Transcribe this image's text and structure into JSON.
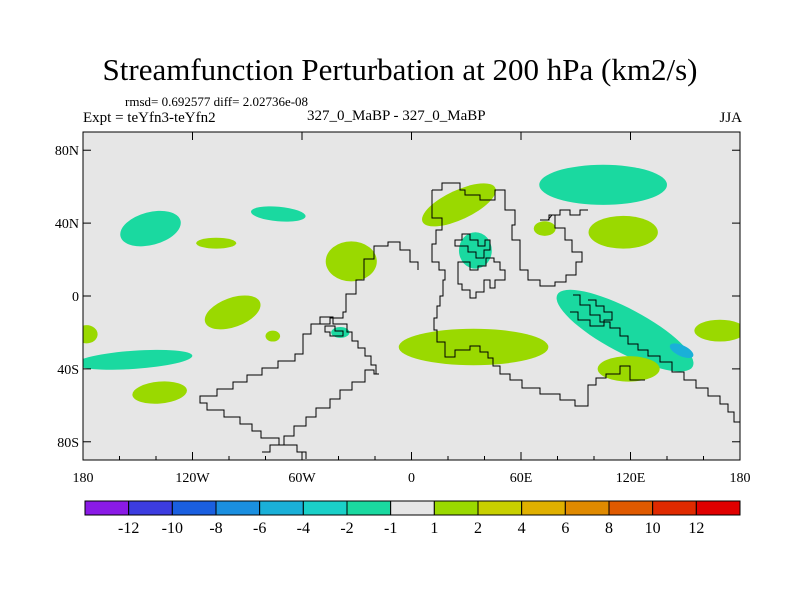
{
  "chart_data": {
    "type": "heatmap",
    "title": "Streamfunction Perturbation at 200 hPa (km2/s)",
    "subtitle_stats": "rmsd= 0.692577 diff= 2.02736e-08",
    "experiment_label": "Expt = teYfn3-teYfn2",
    "case_label": "327_0_MaBP - 327_0_MaBP",
    "season": "JJA",
    "map": "global lat-lon with coastlines",
    "x_ticks": [
      "180",
      "120W",
      "60W",
      "0",
      "60E",
      "120E",
      "180"
    ],
    "y_ticks": [
      "80N",
      "40N",
      "0",
      "40S",
      "80S"
    ],
    "xlim": [
      -180,
      180
    ],
    "ylim": [
      -90,
      90
    ],
    "colorbar": {
      "labels": [
        "-12",
        "-10",
        "-8",
        "-6",
        "-4",
        "-2",
        "-1",
        "1",
        "2",
        "4",
        "6",
        "8",
        "10",
        "12"
      ],
      "colors": [
        "#8a1ae6",
        "#3c3ce0",
        "#1a5fe0",
        "#1a8fe0",
        "#1ab0d8",
        "#1ad0c8",
        "#1ad9a0",
        "#e6e6e6",
        "#9ad900",
        "#c8d000",
        "#e0b000",
        "#e08a00",
        "#e05a00",
        "#e02a00",
        "#e00000"
      ]
    },
    "features": [
      {
        "lon": -143,
        "lat": 37,
        "rlon": 17,
        "rlat": 9,
        "rot": -15,
        "level": "-2"
      },
      {
        "lon": -73,
        "lat": 45,
        "rlon": 15,
        "rlat": 4,
        "rot": 5,
        "level": "-2"
      },
      {
        "lon": -107,
        "lat": 29,
        "rlon": 11,
        "rlat": 3,
        "rot": 0,
        "level": "1"
      },
      {
        "lon": -33,
        "lat": 19,
        "rlon": 14,
        "rlat": 11,
        "rot": 0,
        "level": "1"
      },
      {
        "lon": -98,
        "lat": -9,
        "rlon": 16,
        "rlat": 8,
        "rot": -20,
        "level": "1"
      },
      {
        "lon": -178,
        "lat": -21,
        "rlon": 6,
        "rlat": 5,
        "rot": 0,
        "level": "1"
      },
      {
        "lon": -152,
        "lat": -35,
        "rlon": 32,
        "rlat": 5,
        "rot": -4,
        "level": "-2"
      },
      {
        "lon": -76,
        "lat": -22,
        "rlon": 4,
        "rlat": 3,
        "rot": 0,
        "level": "1"
      },
      {
        "lon": -39,
        "lat": -20,
        "rlon": 5,
        "rlat": 3,
        "rot": 0,
        "level": "-2"
      },
      {
        "lon": -138,
        "lat": -53,
        "rlon": 15,
        "rlat": 6,
        "rot": -5,
        "level": "1"
      },
      {
        "lon": 34,
        "lat": -28,
        "rlon": 41,
        "rlat": 10,
        "rot": 0,
        "level": "1"
      },
      {
        "lon": 26,
        "lat": 50,
        "rlon": 22,
        "rlat": 8,
        "rot": -25,
        "level": "1"
      },
      {
        "lon": 35,
        "lat": 25,
        "rlon": 9,
        "rlat": 10,
        "rot": 0,
        "level": "-2"
      },
      {
        "lon": 73,
        "lat": 37,
        "rlon": 6,
        "rlat": 4,
        "rot": 0,
        "level": "1"
      },
      {
        "lon": 105,
        "lat": 61,
        "rlon": 35,
        "rlat": 11,
        "rot": 0,
        "level": "-2"
      },
      {
        "lon": 116,
        "lat": 35,
        "rlon": 19,
        "rlat": 9,
        "rot": 0,
        "level": "1"
      },
      {
        "lon": 117,
        "lat": -19,
        "rlon": 42,
        "rlat": 12,
        "rot": 28,
        "level": "-2"
      },
      {
        "lon": 148,
        "lat": -30,
        "rlon": 7,
        "rlat": 3,
        "rot": 25,
        "level": "-4"
      },
      {
        "lon": 119,
        "lat": -40,
        "rlon": 17,
        "rlat": 7,
        "rot": 0,
        "level": "1"
      },
      {
        "lon": 169,
        "lat": -19,
        "rlon": 14,
        "rlat": 6,
        "rot": 0,
        "level": "1"
      }
    ]
  }
}
